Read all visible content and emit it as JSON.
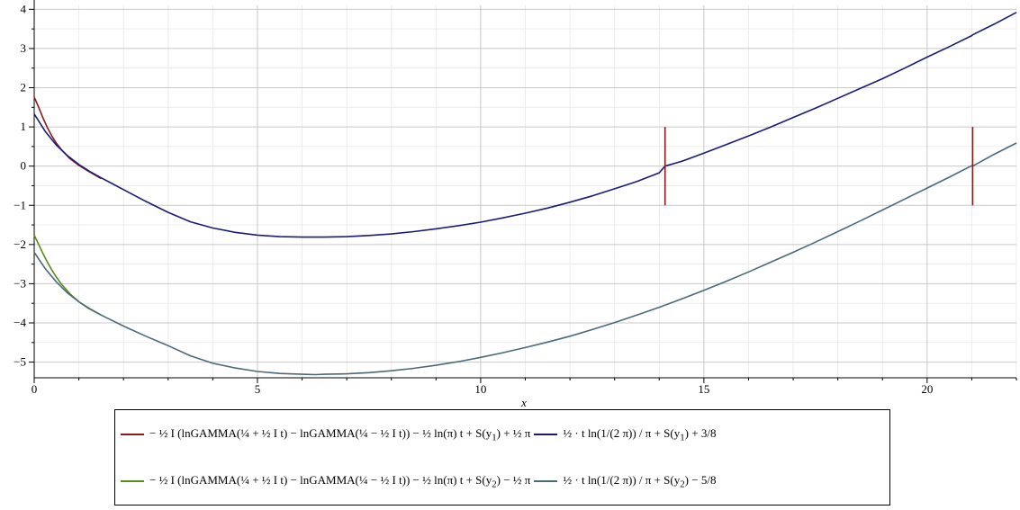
{
  "chart_data": {
    "type": "line",
    "title": "",
    "xlabel": "x",
    "ylabel": "",
    "xlim": [
      0,
      22
    ],
    "ylim": [
      -5.4,
      4.1
    ],
    "xticks": [
      0,
      5,
      10,
      15,
      20
    ],
    "xtick_labels": [
      "0",
      "5",
      "10",
      "15",
      "20"
    ],
    "yticks": [
      4,
      3,
      2,
      1,
      0,
      -1,
      -2,
      -3,
      -4,
      -5
    ],
    "ytick_labels": [
      "4",
      "3",
      "2",
      "1",
      "0",
      "−1",
      "−2",
      "−3",
      "−4",
      "−5"
    ],
    "grid": true,
    "legend_position": "bottom",
    "series": [
      {
        "name": "−½ I (lnGAMMA(¼ + ½ I t) − lnGAMMA(¼ − ½ I t)) − ½ ln(π) t + S(y₁) + ½ π",
        "color": "#8b1a1a",
        "x": [
          0,
          0.1,
          0.2,
          0.3,
          0.4,
          0.5,
          0.6,
          0.8,
          1.0,
          1.2,
          1.5
        ],
        "y": [
          1.76,
          1.5,
          1.22,
          0.97,
          0.76,
          0.58,
          0.43,
          0.19,
          0.02,
          -0.12,
          -0.32
        ]
      },
      {
        "name": "½ (t ln(1/(2π)))/π + S(y₁) + 3/8",
        "color": "#1a1a7a",
        "x": [
          0,
          0.25,
          0.5,
          0.75,
          1.0,
          1.25,
          1.5,
          2,
          2.5,
          3,
          3.5,
          4,
          4.5,
          5,
          5.5,
          6,
          6.3,
          6.5,
          7,
          7.5,
          8,
          8.5,
          9,
          9.5,
          10,
          10.5,
          11,
          11.5,
          12,
          12.5,
          13,
          13.5,
          14,
          14.13,
          14.5,
          15,
          15.5,
          16,
          16.5,
          17,
          17.5,
          18,
          18.5,
          19,
          19.5,
          20,
          20.5,
          21,
          21.02,
          21.5,
          22
        ],
        "y": [
          1.33,
          0.88,
          0.53,
          0.26,
          0.04,
          -0.14,
          -0.3,
          -0.6,
          -0.9,
          -1.18,
          -1.42,
          -1.58,
          -1.69,
          -1.76,
          -1.8,
          -1.81,
          -1.81,
          -1.81,
          -1.8,
          -1.77,
          -1.73,
          -1.67,
          -1.6,
          -1.52,
          -1.43,
          -1.32,
          -1.2,
          -1.07,
          -0.92,
          -0.76,
          -0.58,
          -0.39,
          -0.17,
          0.0,
          0.12,
          0.33,
          0.55,
          0.77,
          1.0,
          1.24,
          1.48,
          1.73,
          1.98,
          2.23,
          2.5,
          2.78,
          3.05,
          3.33,
          3.35,
          3.62,
          3.92
        ]
      },
      {
        "name": "−½ I (lnGAMMA(¼ + ½ I t) − lnGAMMA(¼ − ½ I t)) − ½ ln(π) t + S(y₂) − ½ π",
        "color": "#5a8a1a",
        "x": [
          0,
          0.1,
          0.2,
          0.3,
          0.4,
          0.5,
          0.6,
          0.8,
          1.0,
          1.2,
          1.5
        ],
        "y": [
          -1.76,
          -2.0,
          -2.24,
          -2.46,
          -2.66,
          -2.84,
          -3.0,
          -3.26,
          -3.46,
          -3.62,
          -3.8
        ]
      },
      {
        "name": "½ (t ln(1/(2π)))/π + S(y₂) − 5/8",
        "color": "#4a6a7a",
        "x": [
          0,
          0.25,
          0.5,
          0.75,
          1.0,
          1.25,
          1.5,
          2,
          2.5,
          3,
          3.5,
          4,
          4.5,
          5,
          5.5,
          6,
          6.3,
          6.5,
          7,
          7.5,
          8,
          8.5,
          9,
          9.5,
          10,
          10.5,
          11,
          11.5,
          12,
          12.5,
          13,
          13.5,
          14,
          14.5,
          15,
          15.5,
          16,
          16.5,
          17,
          17.5,
          18,
          18.5,
          19,
          19.5,
          20,
          20.5,
          21,
          21.02,
          21.5,
          22
        ],
        "y": [
          -2.2,
          -2.62,
          -2.96,
          -3.24,
          -3.46,
          -3.64,
          -3.8,
          -4.08,
          -4.34,
          -4.58,
          -4.84,
          -5.03,
          -5.15,
          -5.24,
          -5.29,
          -5.31,
          -5.32,
          -5.31,
          -5.3,
          -5.27,
          -5.22,
          -5.16,
          -5.08,
          -4.99,
          -4.88,
          -4.76,
          -4.63,
          -4.49,
          -4.34,
          -4.17,
          -3.99,
          -3.8,
          -3.6,
          -3.39,
          -3.17,
          -2.94,
          -2.7,
          -2.45,
          -2.2,
          -1.94,
          -1.67,
          -1.4,
          -1.12,
          -0.84,
          -0.56,
          -0.28,
          0.01,
          0.0,
          0.3,
          0.59
        ]
      }
    ],
    "markers": [
      {
        "x": 14.13,
        "y_from": -1,
        "y_to": 1,
        "color": "#8b1a1a"
      },
      {
        "x": 21.02,
        "y_from": -1,
        "y_to": 1,
        "color": "#8b1a1a"
      }
    ]
  },
  "legend": {
    "row1": {
      "left_color": "#8b1a1a",
      "left_text_1": "− ½ I (lnGAMMA(¼ + ½ I t) − lnGAMMA(¼ − ½ I t)) − ½ ln(π) t + S(y",
      "left_sub": "1",
      "left_text_2": ") + ½ π",
      "right_color": "#1a1a7a",
      "right_text_1": "½ · t ln(1/(2 π)) / π + S(y",
      "right_sub": "1",
      "right_text_2": ") + 3/8"
    },
    "row2": {
      "left_color": "#5a8a1a",
      "left_text_1": "− ½ I (lnGAMMA(¼ + ½ I t) − lnGAMMA(¼ − ½ I t)) − ½ ln(π) t + S(y",
      "left_sub": "2",
      "left_text_2": ") − ½ π",
      "right_color": "#4a6a7a",
      "right_text_1": "½ · t ln(1/(2 π)) / π + S(y",
      "right_sub": "2",
      "right_text_2": ") − 5/8"
    }
  }
}
